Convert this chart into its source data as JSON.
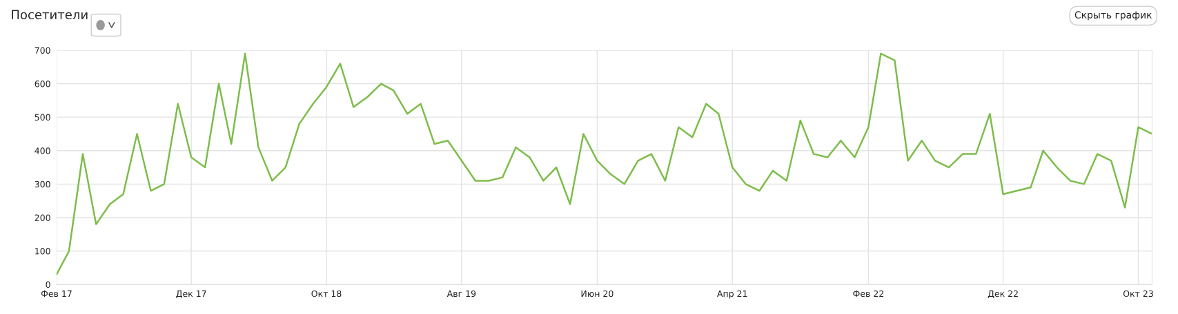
{
  "chart_data": {
    "type": "line",
    "title": "Посетители",
    "annotations": [
      "Скрыть график"
    ],
    "x": [
      "2017-02",
      "2017-03",
      "2017-04",
      "2017-05",
      "2017-06",
      "2017-07",
      "2017-08",
      "2017-09",
      "2017-10",
      "2017-11",
      "2017-12",
      "2018-01",
      "2018-02",
      "2018-03",
      "2018-04",
      "2018-05",
      "2018-06",
      "2018-07",
      "2018-08",
      "2018-09",
      "2018-10",
      "2018-11",
      "2018-12",
      "2019-01",
      "2019-02",
      "2019-03",
      "2019-04",
      "2019-05",
      "2019-06",
      "2019-07",
      "2019-08",
      "2019-09",
      "2019-10",
      "2019-11",
      "2019-12",
      "2020-01",
      "2020-02",
      "2020-03",
      "2020-04",
      "2020-05",
      "2020-06",
      "2020-07",
      "2020-08",
      "2020-09",
      "2020-10",
      "2020-11",
      "2020-12",
      "2021-01",
      "2021-02",
      "2021-03",
      "2021-04",
      "2021-05",
      "2021-06",
      "2021-07",
      "2021-08",
      "2021-09",
      "2021-10",
      "2021-11",
      "2021-12",
      "2022-01",
      "2022-02",
      "2022-03",
      "2022-04",
      "2022-05",
      "2022-06",
      "2022-07",
      "2022-08",
      "2022-09",
      "2022-10",
      "2022-11",
      "2022-12",
      "2023-01",
      "2023-02",
      "2023-03",
      "2023-04",
      "2023-05",
      "2023-06",
      "2023-07",
      "2023-08",
      "2023-09",
      "2023-10",
      "2023-11"
    ],
    "series": [
      {
        "color": "#7dbd4a",
        "values": [
          30,
          100,
          390,
          180,
          240,
          270,
          450,
          280,
          300,
          540,
          380,
          350,
          600,
          420,
          690,
          410,
          310,
          350,
          480,
          540,
          590,
          660,
          530,
          560,
          600,
          580,
          510,
          540,
          420,
          430,
          370,
          310,
          310,
          320,
          410,
          380,
          310,
          350,
          240,
          450,
          370,
          330,
          300,
          370,
          390,
          310,
          470,
          440,
          540,
          510,
          350,
          300,
          280,
          340,
          310,
          490,
          390,
          380,
          430,
          380,
          470,
          690,
          670,
          370,
          430,
          370,
          350,
          390,
          390,
          510,
          270,
          280,
          290,
          400,
          350,
          310,
          300,
          390,
          370,
          230,
          470,
          450
        ]
      }
    ],
    "xlim": [
      "2017-02",
      "2023-11"
    ],
    "xticks": [
      {
        "value": "2017-02",
        "label": "Фев 17"
      },
      {
        "value": "2017-12",
        "label": "Дек 17"
      },
      {
        "value": "2018-10",
        "label": "Окт 18"
      },
      {
        "value": "2019-08",
        "label": "Авг 19"
      },
      {
        "value": "2020-06",
        "label": "Июн 20"
      },
      {
        "value": "2021-04",
        "label": "Апр 21"
      },
      {
        "value": "2022-02",
        "label": "Фев 22"
      },
      {
        "value": "2022-12",
        "label": "Дек 22"
      },
      {
        "value": "2023-10",
        "label": "Окт 23"
      }
    ],
    "ylim": [
      0,
      700
    ],
    "yticks": [
      0,
      100,
      200,
      300,
      400,
      500,
      600,
      700
    ],
    "grid": true,
    "marker": "none",
    "line_style": "solid"
  }
}
